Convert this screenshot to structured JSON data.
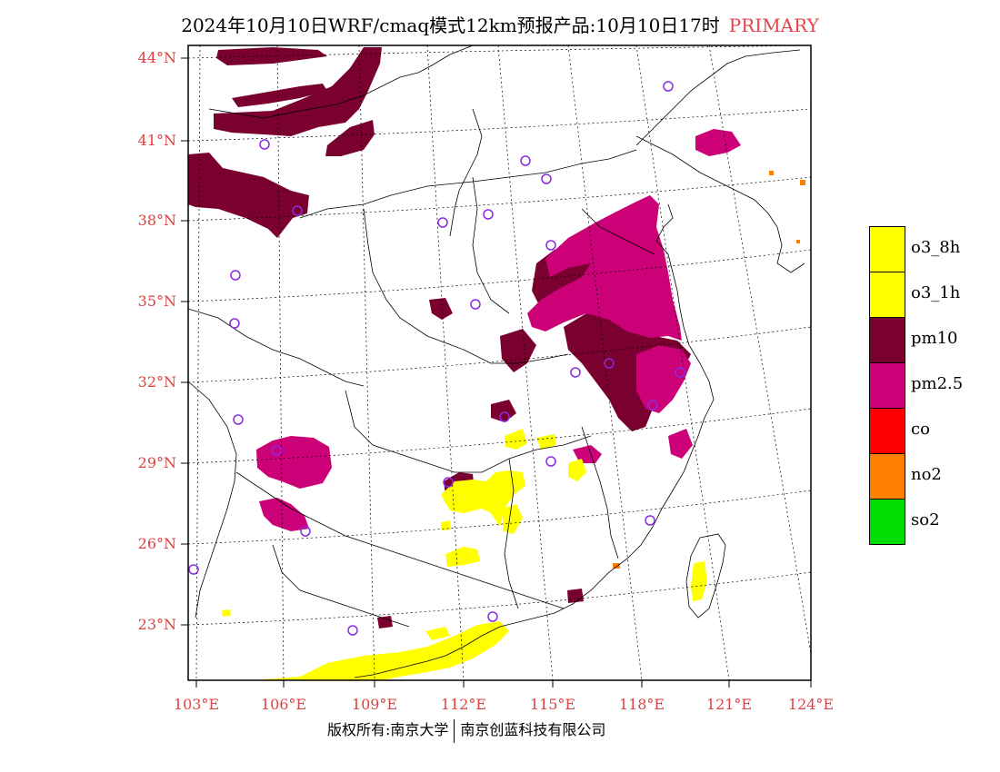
{
  "title": {
    "main": "2024年10月10日WRF/cmaq模式12km预报产品:10月10日17时",
    "mode": "PRIMARY",
    "mode_color": "#e8414a"
  },
  "axes": {
    "lat_labels": [
      "44°N",
      "41°N",
      "38°N",
      "35°N",
      "32°N",
      "29°N",
      "26°N",
      "23°N"
    ],
    "lon_labels": [
      "103°E",
      "106°E",
      "109°E",
      "112°E",
      "115°E",
      "118°E",
      "121°E",
      "124°E"
    ],
    "label_color": "#e04040"
  },
  "legend": [
    {
      "label": "o3_8h",
      "color": "#ffff00"
    },
    {
      "label": "o3_1h",
      "color": "#ffff00"
    },
    {
      "label": "pm10",
      "color": "#7a0030"
    },
    {
      "label": "pm2.5",
      "color": "#cc0077"
    },
    {
      "label": "co",
      "color": "#ff0000"
    },
    {
      "label": "no2",
      "color": "#ff7f00"
    },
    {
      "label": "so2",
      "color": "#00dd00"
    }
  ],
  "footer": {
    "left": "版权所有:南京大学",
    "right": "南京创蓝科技有限公司"
  },
  "colors": {
    "pm10": "#7a0030",
    "pm25": "#cc0077",
    "o3": "#ffff00",
    "no2": "#ff7f00",
    "city_marker": "#8a2be2",
    "border": "#000000",
    "grid": "#000000"
  }
}
